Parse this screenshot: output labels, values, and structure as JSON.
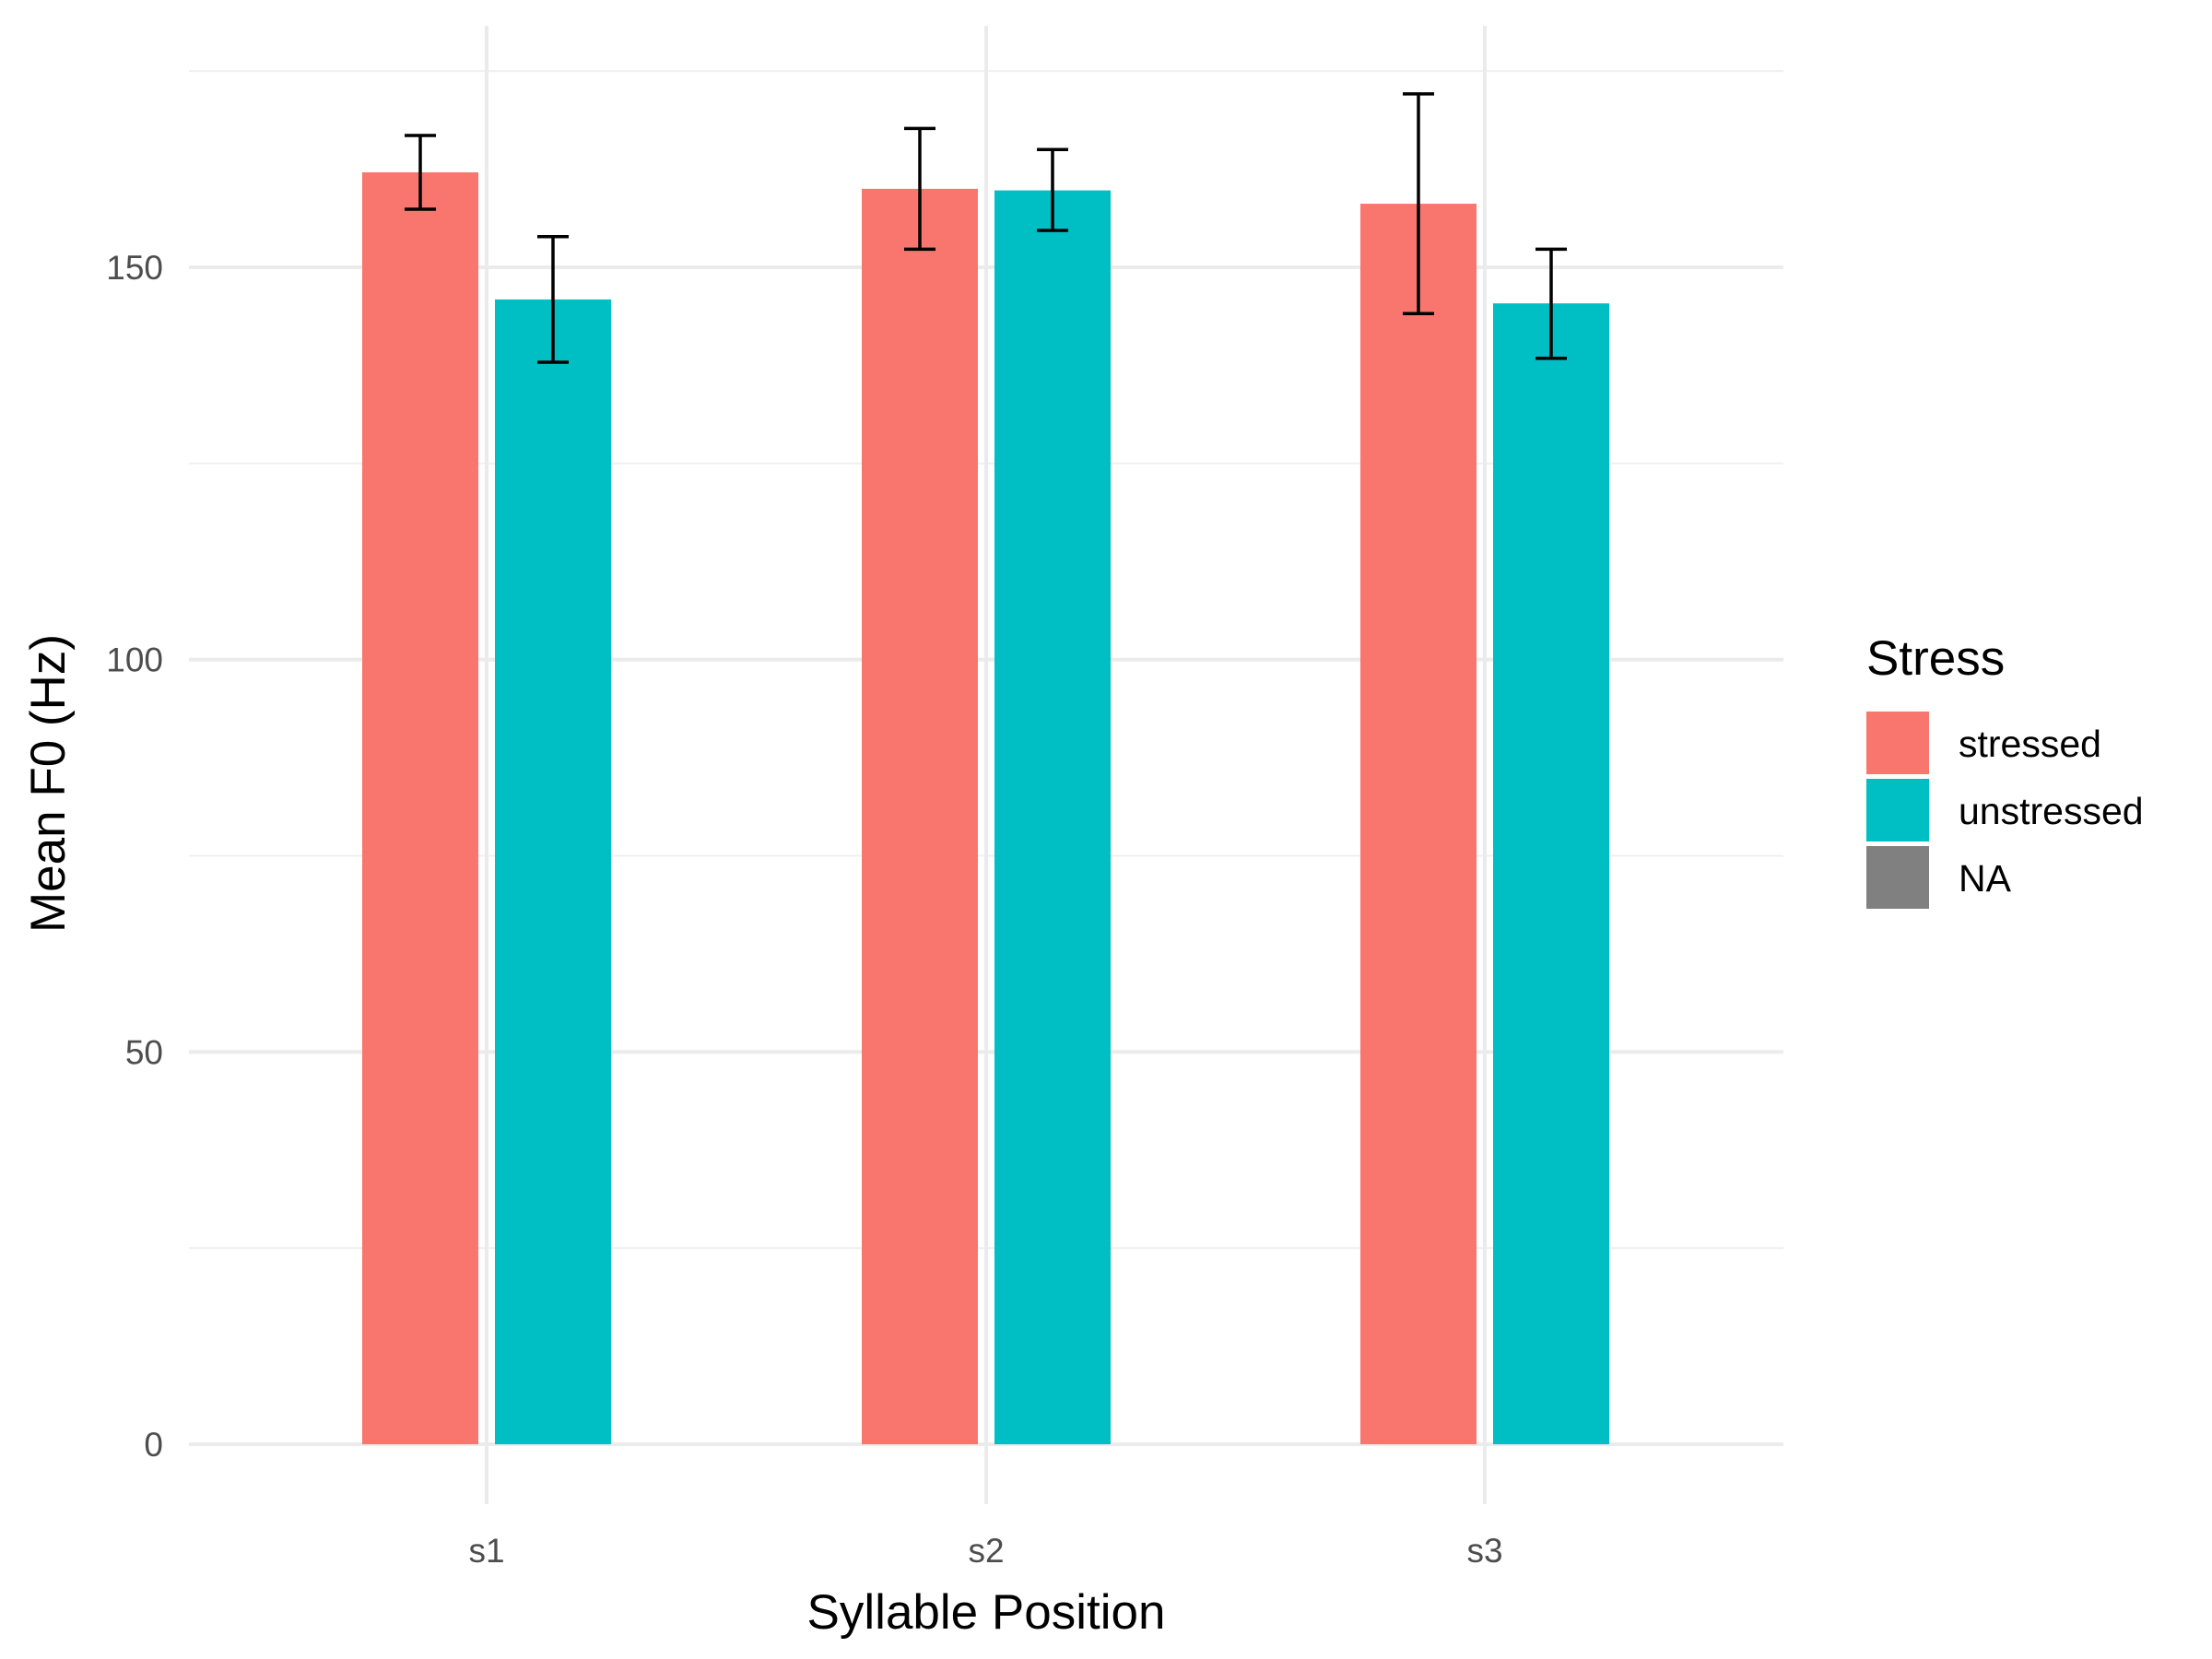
{
  "chart_data": {
    "type": "bar",
    "title": "",
    "xlabel": "Syllable Position",
    "ylabel": "Mean F0 (Hz)",
    "categories": [
      "s1",
      "s2",
      "s3"
    ],
    "ylim": [
      0,
      175
    ],
    "y_ticks": [
      0,
      50,
      100,
      150
    ],
    "grid": true,
    "legend_position": "right",
    "series": [
      {
        "name": "stressed",
        "color": "#F8766D",
        "values": [
          162.1,
          160.0,
          158.1
        ],
        "error_low": [
          157.4,
          152.3,
          144.1
        ],
        "error_high": [
          166.8,
          167.7,
          172.1
        ]
      },
      {
        "name": "unstressed",
        "color": "#00BFC4",
        "values": [
          145.9,
          159.8,
          145.4
        ],
        "error_low": [
          137.9,
          154.7,
          138.4
        ],
        "error_high": [
          153.9,
          165.0,
          152.3
        ]
      }
    ],
    "legend": {
      "title": "Stress",
      "entries": [
        {
          "label": "stressed",
          "color": "#F8766D"
        },
        {
          "label": "unstressed",
          "color": "#00BFC4"
        },
        {
          "label": "NA",
          "color": "#808080"
        }
      ]
    }
  }
}
